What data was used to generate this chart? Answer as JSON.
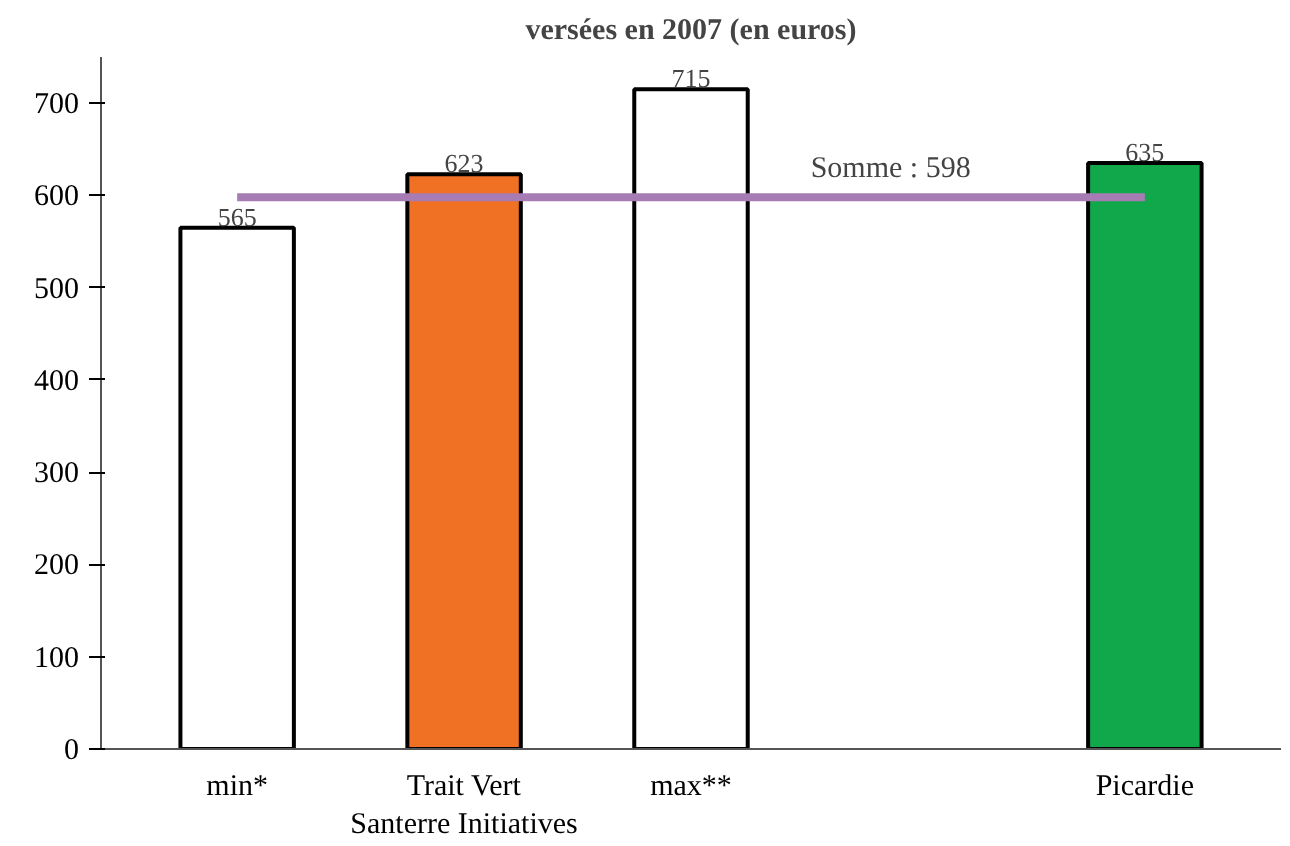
{
  "chart_data": {
    "type": "bar",
    "title": "versées en 2007 (en euros)",
    "categories": [
      "min*",
      "Trait Vert\nSanterre Initiatives",
      "max**",
      null,
      "Picardie"
    ],
    "values": [
      565,
      623,
      715,
      null,
      635
    ],
    "colors": [
      "#ffffff",
      "#f07024",
      "#ffffff",
      "#ffffff",
      "#10a84a"
    ],
    "data_labels": true,
    "ylim": [
      0,
      750
    ],
    "yticks": [
      0,
      100,
      200,
      300,
      400,
      500,
      600,
      700
    ],
    "ref_lines": [
      {
        "axis": "y",
        "value": 598,
        "label": "Somme : 598",
        "color": "#a77bb3"
      }
    ],
    "grid": false
  }
}
